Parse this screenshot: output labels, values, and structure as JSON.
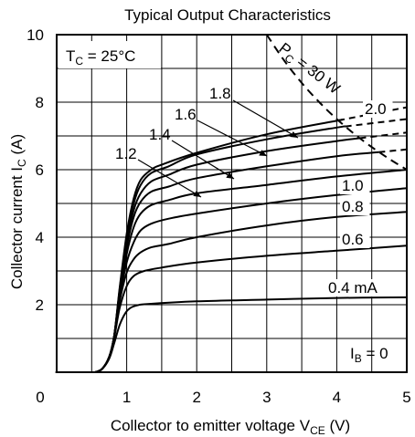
{
  "chart_data": {
    "type": "line",
    "title": "Typical Output Characteristics",
    "xlabel": "Collector to emitter voltage",
    "xlabel_symbol": "V",
    "xlabel_sub": "CE",
    "xlabel_unit": "(V)",
    "ylabel": "Collector current",
    "ylabel_symbol": "I",
    "ylabel_sub": "C",
    "ylabel_unit": "(A)",
    "xlim": [
      0,
      5
    ],
    "ylim": [
      0,
      10
    ],
    "x_ticks": [
      "0",
      "1",
      "2",
      "3",
      "4",
      "5"
    ],
    "y_ticks": [
      "2",
      "4",
      "6",
      "8",
      "10"
    ],
    "grid": true,
    "condition": {
      "prefix": "T",
      "sub": "C",
      "text": " = 25°C"
    },
    "series": [
      {
        "name": "0",
        "label_prefix": "I",
        "label_sub": "B",
        "label_text": " = 0",
        "x": [
          0,
          0.55,
          5
        ],
        "y": [
          0,
          0,
          0
        ]
      },
      {
        "name": "0.4 mA",
        "label": "0.4 mA",
        "x": [
          0.55,
          0.65,
          0.75,
          0.82,
          0.9,
          0.98,
          1.05,
          1.15,
          1.3,
          2,
          3,
          4,
          5
        ],
        "y": [
          0,
          0.1,
          0.4,
          0.85,
          1.4,
          1.75,
          1.9,
          1.98,
          2.02,
          2.1,
          2.15,
          2.2,
          2.22
        ]
      },
      {
        "name": "0.6",
        "label": "0.6",
        "x": [
          0.55,
          0.65,
          0.75,
          0.82,
          0.9,
          1.0,
          1.1,
          1.25,
          1.5,
          2,
          3,
          4,
          5
        ],
        "y": [
          0,
          0.1,
          0.45,
          1.0,
          1.9,
          2.55,
          2.85,
          3.0,
          3.1,
          3.25,
          3.45,
          3.6,
          3.75
        ]
      },
      {
        "name": "0.8",
        "label": "0.8",
        "x": [
          0.55,
          0.65,
          0.75,
          0.82,
          0.9,
          1.0,
          1.1,
          1.2,
          1.35,
          1.6,
          2,
          3,
          4,
          5
        ],
        "y": [
          0,
          0.1,
          0.45,
          1.05,
          2.1,
          2.95,
          3.35,
          3.55,
          3.7,
          3.8,
          4.0,
          4.35,
          4.6,
          4.75
        ]
      },
      {
        "name": "1.0",
        "label": "1.0",
        "x": [
          0.55,
          0.65,
          0.75,
          0.82,
          0.9,
          1.0,
          1.1,
          1.2,
          1.35,
          1.6,
          2,
          3,
          4,
          5
        ],
        "y": [
          0,
          0.1,
          0.45,
          1.05,
          2.2,
          3.25,
          3.85,
          4.2,
          4.4,
          4.55,
          4.7,
          5.0,
          5.25,
          5.45
        ]
      },
      {
        "name": "1.2",
        "label": "1.2",
        "x": [
          0.55,
          0.65,
          0.75,
          0.82,
          0.9,
          1.0,
          1.1,
          1.2,
          1.35,
          1.6,
          2,
          3,
          4,
          5
        ],
        "y": [
          0,
          0.1,
          0.45,
          1.05,
          2.3,
          3.5,
          4.3,
          4.7,
          4.95,
          5.1,
          5.3,
          5.55,
          5.8,
          6.0
        ]
      },
      {
        "name": "1.4",
        "label": "1.4",
        "x": [
          0.55,
          0.65,
          0.75,
          0.82,
          0.9,
          1.0,
          1.1,
          1.2,
          1.35,
          1.6,
          2,
          3,
          4,
          5
        ],
        "y": [
          0,
          0.1,
          0.45,
          1.05,
          2.35,
          3.7,
          4.6,
          5.05,
          5.35,
          5.5,
          5.75,
          6.1,
          6.4,
          6.6
        ]
      },
      {
        "name": "1.6",
        "label": "1.6",
        "x": [
          0.55,
          0.65,
          0.75,
          0.82,
          0.9,
          1.0,
          1.1,
          1.2,
          1.35,
          1.6,
          2,
          3,
          4,
          5
        ],
        "y": [
          0,
          0.1,
          0.45,
          1.05,
          2.4,
          3.85,
          4.8,
          5.3,
          5.65,
          5.85,
          6.15,
          6.55,
          6.85,
          7.1
        ]
      },
      {
        "name": "1.8",
        "label": "1.8",
        "x": [
          0.55,
          0.65,
          0.75,
          0.82,
          0.9,
          1.0,
          1.1,
          1.2,
          1.35,
          1.6,
          2,
          3,
          4,
          5
        ],
        "y": [
          0,
          0.1,
          0.45,
          1.05,
          2.45,
          4.0,
          5.0,
          5.55,
          5.9,
          6.1,
          6.45,
          6.9,
          7.25,
          7.5
        ]
      },
      {
        "name": "2.0",
        "label": "2.0",
        "x": [
          0.55,
          0.65,
          0.75,
          0.82,
          0.9,
          1.0,
          1.1,
          1.2,
          1.35,
          1.5,
          2,
          3,
          4,
          5
        ],
        "y": [
          0,
          0.1,
          0.45,
          1.05,
          2.5,
          4.1,
          5.15,
          5.7,
          6.0,
          6.15,
          6.5,
          7.05,
          7.45,
          7.85
        ]
      }
    ],
    "power_limit": {
      "label_prefix": "P",
      "label_sub": "C",
      "label_text": " = 30 W",
      "x": [
        3.0,
        3.25,
        3.5,
        3.75,
        4.0,
        4.25,
        4.5,
        4.75,
        5.0
      ],
      "y": [
        10.0,
        9.23,
        8.57,
        8.0,
        7.5,
        7.06,
        6.67,
        6.32,
        6.0
      ]
    }
  }
}
